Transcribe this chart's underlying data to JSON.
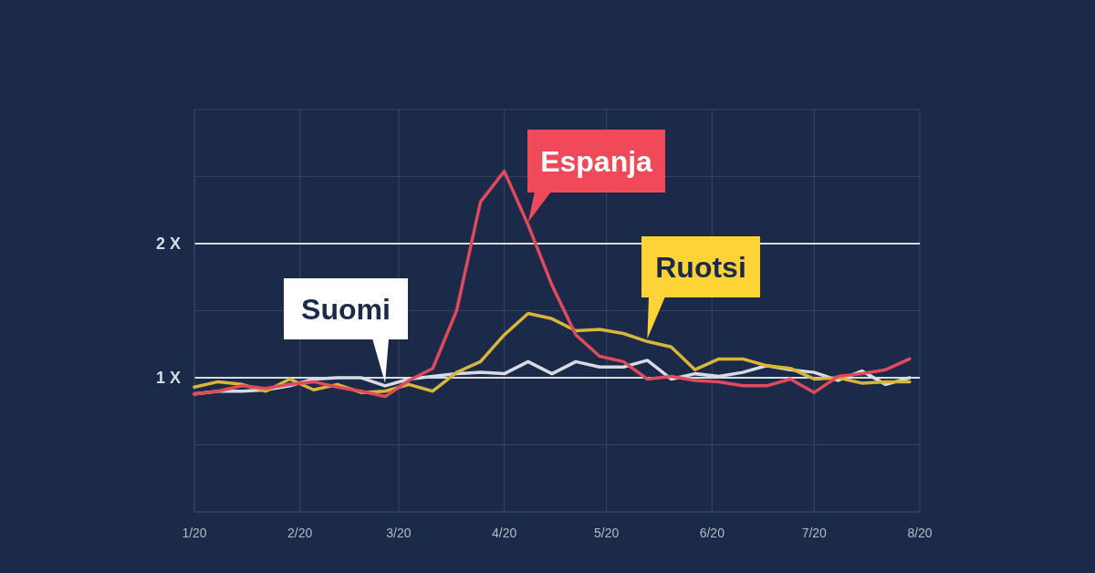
{
  "chart_data": {
    "type": "line",
    "x": [
      "2020-01-01",
      "2020-01-08",
      "2020-01-15",
      "2020-01-22",
      "2020-01-29",
      "2020-02-05",
      "2020-02-12",
      "2020-02-19",
      "2020-02-26",
      "2020-03-04",
      "2020-03-11",
      "2020-03-18",
      "2020-03-25",
      "2020-04-01",
      "2020-04-08",
      "2020-04-15",
      "2020-04-22",
      "2020-04-29",
      "2020-05-06",
      "2020-05-13",
      "2020-05-20",
      "2020-05-27",
      "2020-06-03",
      "2020-06-10",
      "2020-06-17",
      "2020-06-24",
      "2020-07-01",
      "2020-07-08",
      "2020-07-15",
      "2020-07-22",
      "2020-07-29"
    ],
    "series": [
      {
        "name": "Suomi",
        "color": "#d8dbe3",
        "values": [
          0.88,
          0.9,
          0.9,
          0.91,
          0.94,
          0.99,
          1.0,
          1.0,
          0.94,
          0.99,
          1.01,
          1.03,
          1.04,
          1.03,
          1.12,
          1.03,
          1.12,
          1.08,
          1.08,
          1.13,
          0.99,
          1.03,
          1.01,
          1.04,
          1.09,
          1.06,
          1.04,
          0.98,
          1.05,
          0.95,
          1.0
        ]
      },
      {
        "name": "Ruotsi",
        "color": "#d9b53a",
        "values": [
          0.93,
          0.97,
          0.95,
          0.9,
          0.99,
          0.91,
          0.95,
          0.89,
          0.9,
          0.95,
          0.9,
          1.04,
          1.12,
          1.32,
          1.48,
          1.44,
          1.35,
          1.36,
          1.33,
          1.27,
          1.23,
          1.06,
          1.14,
          1.14,
          1.09,
          1.07,
          0.99,
          1.0,
          0.96,
          0.97,
          0.97
        ]
      },
      {
        "name": "Espanja",
        "color": "#e04a5c",
        "values": [
          0.88,
          0.9,
          0.94,
          0.92,
          0.95,
          0.97,
          0.93,
          0.9,
          0.86,
          0.98,
          1.07,
          1.5,
          2.31,
          2.54,
          2.14,
          1.69,
          1.32,
          1.16,
          1.12,
          0.99,
          1.01,
          0.98,
          0.97,
          0.94,
          0.94,
          0.99,
          0.89,
          1.01,
          1.03,
          1.06,
          1.14
        ]
      }
    ],
    "xlim": [
      "2020-01-01",
      "2020-08-01"
    ],
    "xticks": [
      {
        "value": "2020-01-01",
        "label": "1/20"
      },
      {
        "value": "2020-02-01",
        "label": "2/20"
      },
      {
        "value": "2020-03-01",
        "label": "3/20"
      },
      {
        "value": "2020-04-01",
        "label": "4/20"
      },
      {
        "value": "2020-05-01",
        "label": "5/20"
      },
      {
        "value": "2020-06-01",
        "label": "6/20"
      },
      {
        "value": "2020-07-01",
        "label": "7/20"
      },
      {
        "value": "2020-08-01",
        "label": "8/20"
      }
    ],
    "ylim": [
      0,
      3
    ],
    "yticks": [
      {
        "value": 0,
        "label": null
      },
      {
        "value": 0.5,
        "label": null
      },
      {
        "value": 1,
        "label": "1 X"
      },
      {
        "value": 1.5,
        "label": null
      },
      {
        "value": 2,
        "label": "2 X"
      },
      {
        "value": 2.5,
        "label": null
      },
      {
        "value": 3,
        "label": null
      }
    ],
    "grid": true,
    "marker": "none",
    "line_style": "solid"
  }
}
